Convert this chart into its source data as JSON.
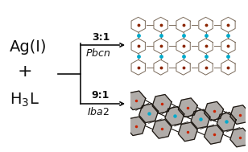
{
  "bg_color": "#ffffff",
  "left_text_color": "#111111",
  "ag_fontsize": 14,
  "plus_fontsize": 16,
  "ligand_fontsize": 14,
  "ratio_fontsize": 9,
  "sg_fontsize": 9,
  "bracket_color": "#111111",
  "arrow_color": "#111111",
  "top_ratio": "3:1",
  "top_sg": "Pbcn",
  "bottom_ratio": "9:1",
  "bottom_sg": "Iba2",
  "top_bg": "#f0ede5",
  "bottom_bg": "#ddd9d0",
  "bond_color_top": "#8a7a6a",
  "atom_red": "#8b2500",
  "atom_cyan": "#00aacc",
  "bond_color_bot": "#2a2520",
  "atom_red2": "#cc2200",
  "atom_cyan2": "#00aacc"
}
